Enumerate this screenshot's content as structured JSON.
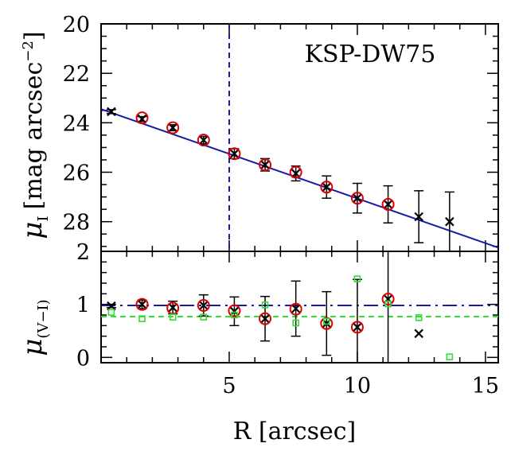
{
  "chart_data": [
    {
      "type": "scatter",
      "title": "",
      "annotation": "KSP-DW75",
      "xlabel": "R [arcsec]",
      "ylabel": "μ_I [mag arcsec⁻²]",
      "ylabel_main": "μ",
      "ylabel_sub": "I",
      "ylabel_unit": "[mag arcsec",
      "ylabel_exp": "−2",
      "ylabel_close": "]",
      "xlim": [
        0,
        15.5
      ],
      "ylim": [
        29.2,
        20
      ],
      "y_inverted": true,
      "xticks": [
        5,
        10,
        15
      ],
      "yticks": [
        20,
        22,
        24,
        26,
        28
      ],
      "ytick_labels": [
        "20",
        "22",
        "24",
        "26",
        "28"
      ],
      "grid": false,
      "series": [
        {
          "name": "",
          "marker": "x",
          "color": "#000000",
          "x": [
            0.4,
            1.6,
            2.8,
            4.0,
            5.2,
            6.4,
            7.6,
            8.8,
            10.0,
            11.2,
            12.4,
            13.6
          ],
          "y": [
            23.55,
            23.85,
            24.2,
            24.7,
            25.25,
            25.7,
            26.05,
            26.6,
            27.05,
            27.3,
            27.8,
            28.0
          ],
          "yerr": [
            0.08,
            0.1,
            0.12,
            0.15,
            0.2,
            0.25,
            0.3,
            0.45,
            0.6,
            0.75,
            1.05,
            1.2
          ]
        },
        {
          "name": "",
          "marker": "circle-open",
          "color": "#e00000",
          "x": [
            1.6,
            2.8,
            4.0,
            5.2,
            6.4,
            7.6,
            8.8,
            10.0,
            11.2
          ],
          "y": [
            23.8,
            24.2,
            24.7,
            25.25,
            25.7,
            26.0,
            26.6,
            27.05,
            27.3
          ]
        }
      ],
      "lines": [
        {
          "name": "",
          "style": "solid",
          "color": "#1a1aa8",
          "x": [
            0,
            15.5
          ],
          "y": [
            23.45,
            29.05
          ]
        },
        {
          "name": "",
          "style": "dashed-vertical",
          "color": "#1a1aa8",
          "x": [
            5,
            5
          ],
          "y": [
            20,
            29.2
          ]
        }
      ]
    },
    {
      "type": "scatter",
      "title": "",
      "xlabel": "R [arcsec]",
      "ylabel": "μ_(V−I)",
      "ylabel_main": "μ",
      "ylabel_sub": "(V−I)",
      "xlim": [
        0,
        15.5
      ],
      "ylim": [
        -0.1,
        2.0
      ],
      "xticks": [
        5,
        10,
        15
      ],
      "xtick_labels": [
        "5",
        "10",
        "15"
      ],
      "yticks": [
        0,
        1,
        2
      ],
      "ytick_labels": [
        "0",
        "1",
        "2"
      ],
      "grid": false,
      "series": [
        {
          "name": "",
          "marker": "x",
          "color": "#000000",
          "x": [
            0.4,
            1.6,
            2.8,
            4.0,
            5.2,
            6.4,
            7.6,
            8.8,
            10.0,
            11.2,
            12.4
          ],
          "y": [
            0.97,
            1.0,
            0.94,
            0.98,
            0.87,
            0.73,
            0.92,
            0.64,
            0.57,
            1.1,
            0.45
          ],
          "yerr": [
            0.03,
            0.08,
            0.12,
            0.2,
            0.27,
            0.42,
            0.52,
            0.6,
            0.9,
            1.2,
            0.0
          ]
        },
        {
          "name": "",
          "marker": "circle-open",
          "color": "#e00000",
          "x": [
            1.6,
            2.8,
            4.0,
            5.2,
            6.4,
            7.6,
            8.8,
            10.0,
            11.2
          ],
          "y": [
            1.0,
            0.93,
            0.98,
            0.88,
            0.73,
            0.91,
            0.64,
            0.57,
            1.1
          ]
        },
        {
          "name": "",
          "marker": "square-open",
          "color": "#33dd33",
          "x": [
            0.4,
            1.6,
            2.8,
            4.0,
            5.2,
            6.4,
            7.6,
            8.8,
            10.0,
            11.2,
            12.4,
            13.6
          ],
          "y": [
            0.85,
            0.73,
            0.76,
            0.76,
            0.8,
            0.99,
            0.65,
            0.68,
            1.48,
            1.01,
            0.75,
            0.01
          ]
        }
      ],
      "lines": [
        {
          "name": "",
          "style": "dash-dot",
          "color": "#1a1aa8",
          "x": [
            0,
            15.5
          ],
          "y": [
            0.98,
            0.98
          ]
        },
        {
          "name": "",
          "style": "dashed",
          "color": "#33dd33",
          "x": [
            0,
            15.5
          ],
          "y": [
            0.77,
            0.77
          ]
        }
      ]
    }
  ]
}
